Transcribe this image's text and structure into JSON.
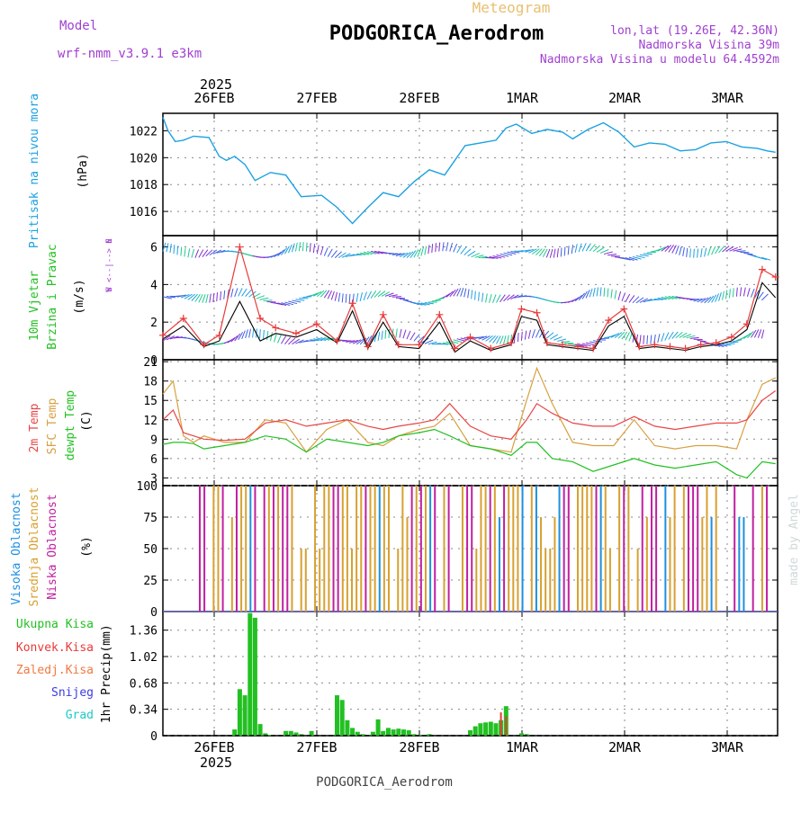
{
  "header": {
    "subtitle": "Meteogram",
    "station": "PODGORICA_Aerodrom",
    "model_label": "Model",
    "model_name": "wrf-nmm_v3.9.1  e3km",
    "coords": "lon,lat (19.26E, 42.36N)",
    "elevation": "Nadmorska Visina 39m",
    "model_elevation": "Nadmorska Visina u modelu 64.4592m"
  },
  "footer": {
    "station": "PODGORICA_Aerodrom",
    "credit": "made by Angel"
  },
  "colors": {
    "pressure": "#1ba1e2",
    "wind_speed": "#e83a3a",
    "wind_gust": "#000000",
    "temp2m": "#e84545",
    "sfc_temp": "#d8a040",
    "dewpoint": "#22c022",
    "cloud_high": "#1e90e0",
    "cloud_mid": "#d8a030",
    "cloud_low": "#c020a0",
    "precip_total": "#22c022",
    "precip_conv": "#e83a3a"
  },
  "time_axis": {
    "year": "2025",
    "labels": [
      "26FEB",
      "27FEB",
      "28FEB",
      "1MAR",
      "2MAR",
      "3MAR"
    ]
  },
  "chart_data": [
    {
      "id": "pressure",
      "type": "line",
      "ylabel_name": "Pritisak na nivou mora",
      "ylabel_unit": "(hPa)",
      "yticks": [
        "1016",
        "1018",
        "1020",
        "1022"
      ],
      "ylim": [
        1014.2,
        1023.3
      ],
      "x_days": [
        0,
        0.05,
        0.12,
        0.2,
        0.3,
        0.45,
        0.55,
        0.62,
        0.7,
        0.8,
        0.9,
        1.05,
        1.2,
        1.35,
        1.55,
        1.7,
        1.85,
        2.0,
        2.15,
        2.3,
        2.45,
        2.6,
        2.75,
        2.95,
        3.1,
        3.25,
        3.35,
        3.45,
        3.6,
        3.75,
        3.9,
        4.0,
        4.15,
        4.3,
        4.45,
        4.6,
        4.75,
        4.9,
        5.05,
        5.2,
        5.35,
        5.5,
        5.65,
        5.8,
        5.9,
        5.98
      ],
      "values": [
        1023.0,
        1022.0,
        1021.2,
        1021.3,
        1021.6,
        1021.5,
        1020.1,
        1019.8,
        1020.1,
        1019.5,
        1018.3,
        1018.9,
        1018.7,
        1017.1,
        1017.2,
        1016.3,
        1015.1,
        1016.3,
        1017.4,
        1017.1,
        1018.2,
        1019.1,
        1018.7,
        1020.9,
        1021.1,
        1021.3,
        1022.2,
        1022.5,
        1021.8,
        1022.1,
        1021.9,
        1021.4,
        1022.1,
        1022.6,
        1021.9,
        1020.8,
        1021.1,
        1021.0,
        1020.5,
        1020.6,
        1021.1,
        1021.2,
        1020.8,
        1020.7,
        1020.5,
        1020.4
      ]
    },
    {
      "id": "wind",
      "type": "line",
      "ylabel_name": "10m Vjetar",
      "ylabel_name2": "Brzina i Pravac",
      "ylabel_unit": "(m/s)",
      "compass": "N",
      "compass_mid": "W  <--|-->  E",
      "compass_bottom": "S",
      "yticks": [
        "0",
        "2",
        "4",
        "6"
      ],
      "ylim": [
        0,
        6.6
      ],
      "x_days": [
        0,
        0.2,
        0.4,
        0.55,
        0.75,
        0.95,
        1.1,
        1.3,
        1.5,
        1.7,
        1.85,
        2.0,
        2.15,
        2.3,
        2.5,
        2.7,
        2.85,
        3.0,
        3.2,
        3.4,
        3.5,
        3.65,
        3.75,
        3.9,
        4.05,
        4.2,
        4.35,
        4.5,
        4.65,
        4.8,
        4.95,
        5.1,
        5.25,
        5.4,
        5.55,
        5.7,
        5.85,
        5.98
      ],
      "speed": [
        1.3,
        2.2,
        0.8,
        1.3,
        6.0,
        2.2,
        1.7,
        1.4,
        1.9,
        1.0,
        3.0,
        0.7,
        2.4,
        0.8,
        0.8,
        2.4,
        0.6,
        1.2,
        0.6,
        0.9,
        2.7,
        2.5,
        0.9,
        0.8,
        0.7,
        0.6,
        2.1,
        2.7,
        0.7,
        0.8,
        0.7,
        0.6,
        0.8,
        0.9,
        1.2,
        1.9,
        4.8,
        4.4
      ],
      "gust": [
        1.1,
        1.8,
        0.7,
        1.0,
        3.1,
        1.0,
        1.4,
        1.2,
        1.6,
        0.9,
        2.6,
        0.6,
        2.0,
        0.7,
        0.6,
        2.0,
        0.4,
        1.0,
        0.5,
        0.8,
        2.3,
        2.1,
        0.8,
        0.7,
        0.6,
        0.5,
        1.8,
        2.3,
        0.6,
        0.7,
        0.6,
        0.5,
        0.7,
        0.8,
        1.0,
        1.6,
        4.1,
        3.3
      ],
      "barb_tracks": [
        1.0,
        3.2,
        5.6
      ]
    },
    {
      "id": "temperature",
      "type": "line",
      "ylabel_names": [
        "2m Temp",
        "SFC Temp",
        "dewpt Temp"
      ],
      "ylabel_unit": "(C)",
      "yticks": [
        "3",
        "6",
        "9",
        "12",
        "15",
        "18",
        "21"
      ],
      "ylim": [
        1.8,
        21.3
      ],
      "x_days": [
        0,
        0.1,
        0.2,
        0.3,
        0.4,
        0.6,
        0.8,
        1.0,
        1.2,
        1.4,
        1.6,
        1.8,
        2.0,
        2.15,
        2.3,
        2.5,
        2.65,
        2.8,
        3.0,
        3.2,
        3.4,
        3.55,
        3.65,
        3.8,
        4.0,
        4.2,
        4.4,
        4.6,
        4.8,
        5.0,
        5.2,
        5.4,
        5.6,
        5.7,
        5.85,
        5.98
      ],
      "t2m": [
        12.0,
        13.5,
        10.0,
        9.5,
        9.0,
        8.8,
        9.0,
        11.5,
        12.0,
        11.0,
        11.5,
        12.0,
        11.0,
        10.5,
        11.0,
        11.5,
        12.0,
        14.5,
        11.0,
        9.5,
        9.0,
        12.0,
        14.5,
        13.0,
        11.5,
        11.0,
        11.0,
        12.5,
        11.0,
        10.5,
        11.0,
        11.5,
        11.5,
        12.0,
        15.0,
        16.5
      ],
      "sfc": [
        16.0,
        18.0,
        9.5,
        8.5,
        9.5,
        8.5,
        8.5,
        12.0,
        11.5,
        7.0,
        10.5,
        12.0,
        8.5,
        8.0,
        9.5,
        10.5,
        11.0,
        13.0,
        8.0,
        7.5,
        7.0,
        15.0,
        20.0,
        14.5,
        8.5,
        8.0,
        8.0,
        12.0,
        8.0,
        7.5,
        8.0,
        8.0,
        7.5,
        12.0,
        17.5,
        18.5
      ],
      "dewpt": [
        8.2,
        8.5,
        8.5,
        8.3,
        7.5,
        8.0,
        8.5,
        9.5,
        9.0,
        7.0,
        9.0,
        8.5,
        8.0,
        8.5,
        9.5,
        10.0,
        10.5,
        9.5,
        8.0,
        7.5,
        6.5,
        8.5,
        8.5,
        6.0,
        5.5,
        4.0,
        5.0,
        6.0,
        5.0,
        4.5,
        5.0,
        5.5,
        3.5,
        3.0,
        5.5,
        5.2
      ]
    },
    {
      "id": "clouds",
      "type": "bar",
      "ylabel_names": [
        "Visoka Oblacnost",
        "Srednja Oblacnost",
        "Niska Oblacnost"
      ],
      "ylabel_unit": "(%)",
      "yticks": [
        "0",
        "25",
        "50",
        "75",
        "100"
      ],
      "ylim": [
        0,
        100
      ]
    },
    {
      "id": "precip",
      "type": "bar",
      "legend": [
        "Ukupna Kisa",
        "Konvek.Kisa",
        "Zaledj.Kisa",
        "Snijeg",
        "Grad"
      ],
      "legend_colors": [
        "#22c022",
        "#e83a3a",
        "#f07840",
        "#3c3ce0",
        "#20c8c8"
      ],
      "ylabel_name": "1hr Precip",
      "ylabel_unit": "(mm)",
      "yticks": [
        "0",
        "0.34",
        "0.68",
        "1.02",
        "1.36"
      ],
      "ylim": [
        0,
        1.6
      ],
      "x_days": [
        0.7,
        0.75,
        0.8,
        0.85,
        0.9,
        0.95,
        1.0,
        1.05,
        1.2,
        1.25,
        1.3,
        1.35,
        1.45,
        1.7,
        1.75,
        1.8,
        1.85,
        1.9,
        1.95,
        2.05,
        2.1,
        2.15,
        2.2,
        2.25,
        2.3,
        2.35,
        2.4,
        2.45,
        2.5,
        2.55,
        2.6,
        3.0,
        3.05,
        3.1,
        3.15,
        3.2,
        3.25,
        3.3,
        3.35,
        3.5,
        3.55
      ],
      "values": [
        0.08,
        0.6,
        0.52,
        1.58,
        1.52,
        0.15,
        0.03,
        0.01,
        0.06,
        0.06,
        0.04,
        0.02,
        0.06,
        0.52,
        0.46,
        0.2,
        0.1,
        0.05,
        0.02,
        0.05,
        0.21,
        0.06,
        0.1,
        0.08,
        0.09,
        0.08,
        0.07,
        0.02,
        0.01,
        0.01,
        0.02,
        0.07,
        0.12,
        0.16,
        0.17,
        0.18,
        0.16,
        0.2,
        0.38,
        0.03,
        0.02
      ],
      "convective": [
        0,
        0,
        0,
        0,
        0,
        0,
        0,
        0,
        0,
        0,
        0,
        0,
        0,
        0,
        0,
        0,
        0,
        0,
        0,
        0,
        0,
        0,
        0,
        0,
        0,
        0,
        0,
        0,
        0,
        0,
        0,
        0,
        0,
        0,
        0,
        0,
        0,
        0.3,
        0.25,
        0,
        0
      ]
    }
  ]
}
